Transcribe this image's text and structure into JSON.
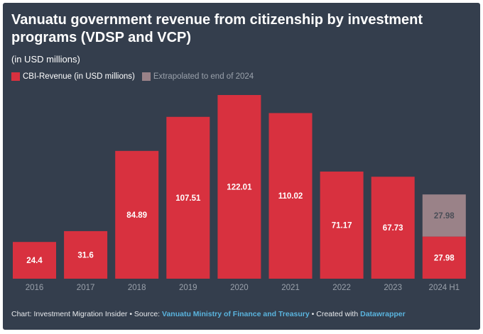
{
  "chart_data": {
    "type": "bar",
    "title": "Vanuatu government revenue from citizenship by investment programs (VDSP and VCP)",
    "subtitle": "(in USD millions)",
    "categories": [
      "2016",
      "2017",
      "2018",
      "2019",
      "2020",
      "2021",
      "2022",
      "2023",
      "2024 H1"
    ],
    "series": [
      {
        "name": "CBI-Revenue (in USD millions)",
        "color": "#d8313f",
        "values": [
          24.4,
          31.6,
          84.89,
          107.51,
          122.01,
          110.02,
          71.17,
          67.73,
          27.98
        ],
        "labels": [
          "24.4",
          "31.6",
          "84.89",
          "107.51",
          "122.01",
          "110.02",
          "71.17",
          "67.73",
          "27.98"
        ]
      },
      {
        "name": "Extrapolated to end of 2024",
        "color": "#9a8288",
        "values": [
          0,
          0,
          0,
          0,
          0,
          0,
          0,
          0,
          27.98
        ],
        "labels": [
          "",
          "",
          "",
          "",
          "",
          "",
          "",
          "",
          "27.98"
        ]
      }
    ],
    "stacked": true,
    "ylim": [
      0,
      122.01
    ],
    "grid": false,
    "legend_position": "top-left"
  },
  "footer": {
    "prefix": "Chart: Investment Migration Insider • Source: ",
    "source": "Vanuatu Ministry of Finance and Treasury",
    "middle": " • Created with ",
    "tool": "Datawrapper"
  },
  "colors": {
    "background": "#343e4d",
    "axis_text": "#9aa1ab",
    "bar_label": "#ffffff",
    "extrapolated_label": "#4a4e57",
    "link": "#5ab4de"
  }
}
